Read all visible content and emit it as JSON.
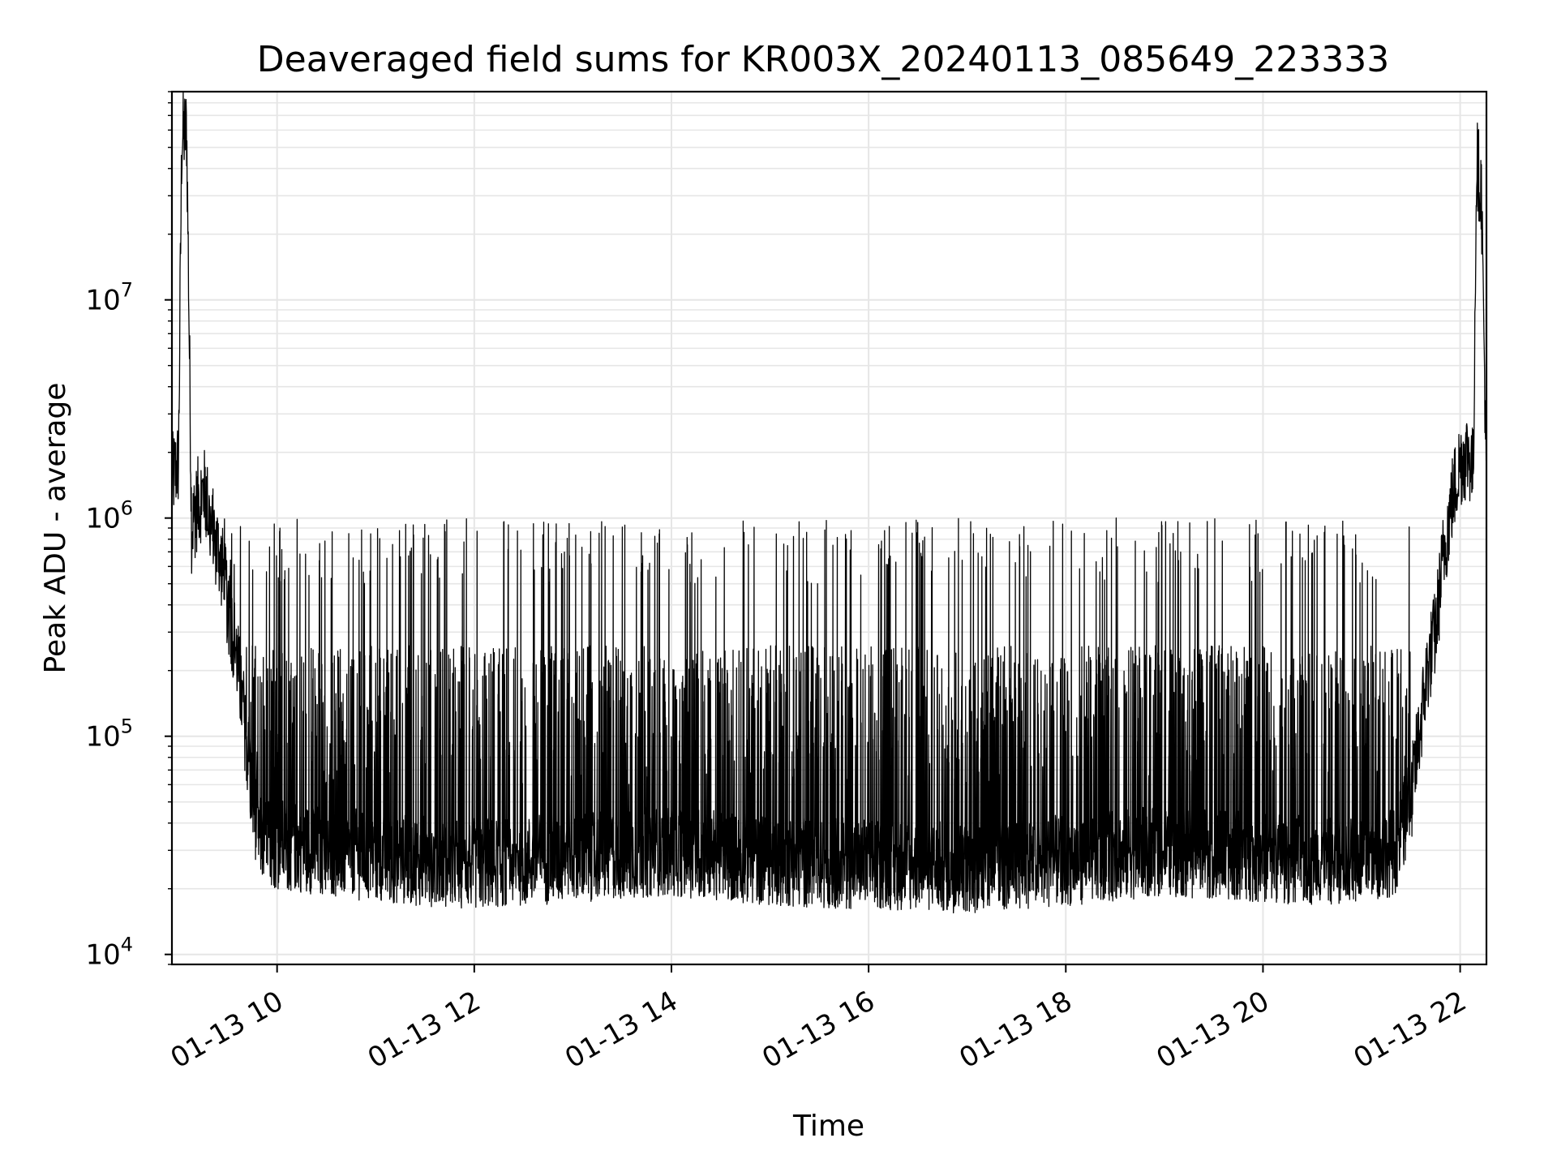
{
  "chart_data": {
    "type": "line",
    "title": "Deaveraged field sums for KR003X_20240113_085649_223333",
    "xlabel": "Time",
    "ylabel": "Peak ADU - average",
    "yscale": "log",
    "grid": true,
    "xlim": [
      "2024-01-13 08:56",
      "2024-01-13 22:16"
    ],
    "ylim": [
      9000,
      90000000
    ],
    "x_ticks": [
      {
        "value": "2024-01-13 10:00",
        "label": "01-13 10"
      },
      {
        "value": "2024-01-13 12:00",
        "label": "01-13 12"
      },
      {
        "value": "2024-01-13 14:00",
        "label": "01-13 14"
      },
      {
        "value": "2024-01-13 16:00",
        "label": "01-13 16"
      },
      {
        "value": "2024-01-13 18:00",
        "label": "01-13 18"
      },
      {
        "value": "2024-01-13 20:00",
        "label": "01-13 20"
      },
      {
        "value": "2024-01-13 22:00",
        "label": "01-13 22"
      }
    ],
    "y_ticks": [
      {
        "value": 10000,
        "base": "10",
        "exp": "4"
      },
      {
        "value": 100000,
        "base": "10",
        "exp": "5"
      },
      {
        "value": 1000000,
        "base": "10",
        "exp": "6"
      },
      {
        "value": 10000000,
        "base": "10",
        "exp": "7"
      }
    ],
    "series": [
      {
        "color": "#000000",
        "x": [
          "2024-01-13 08:56",
          "2024-01-13 09:00",
          "2024-01-13 09:02",
          "2024-01-13 09:05",
          "2024-01-13 09:08",
          "2024-01-13 09:12",
          "2024-01-13 09:16",
          "2024-01-13 09:20",
          "2024-01-13 09:25",
          "2024-01-13 09:30",
          "2024-01-13 09:35",
          "2024-01-13 09:40",
          "2024-01-13 09:45",
          "2024-01-13 09:50",
          "2024-01-13 10:00",
          "2024-01-13 10:30",
          "2024-01-13 11:00",
          "2024-01-13 12:00",
          "2024-01-13 13:00",
          "2024-01-13 14:00",
          "2024-01-13 15:00",
          "2024-01-13 16:00",
          "2024-01-13 17:00",
          "2024-01-13 18:00",
          "2024-01-13 19:00",
          "2024-01-13 20:00",
          "2024-01-13 20:30",
          "2024-01-13 21:00",
          "2024-01-13 21:20",
          "2024-01-13 21:30",
          "2024-01-13 21:40",
          "2024-01-13 21:45",
          "2024-01-13 21:50",
          "2024-01-13 21:55",
          "2024-01-13 22:00",
          "2024-01-13 22:05",
          "2024-01-13 22:08",
          "2024-01-13 22:10",
          "2024-01-13 22:13",
          "2024-01-13 22:16"
        ],
        "y": [
          1500000,
          1800000,
          55000000,
          60000000,
          900000,
          1200000,
          1300000,
          900000,
          700000,
          400000,
          250000,
          120000,
          50000,
          35000,
          32000,
          30000,
          28000,
          26000,
          28000,
          30000,
          27000,
          26000,
          25000,
          27000,
          30000,
          28000,
          27000,
          28000,
          30000,
          50000,
          200000,
          300000,
          700000,
          1200000,
          1800000,
          2000000,
          1600000,
          45000000,
          30000000,
          1500000
        ],
        "spikes": {
          "n": 1400,
          "x_start": "2024-01-13 09:10",
          "x_end": "2024-01-13 21:30",
          "typical_peak": 200000,
          "max_peak": 1000000
        }
      }
    ]
  }
}
